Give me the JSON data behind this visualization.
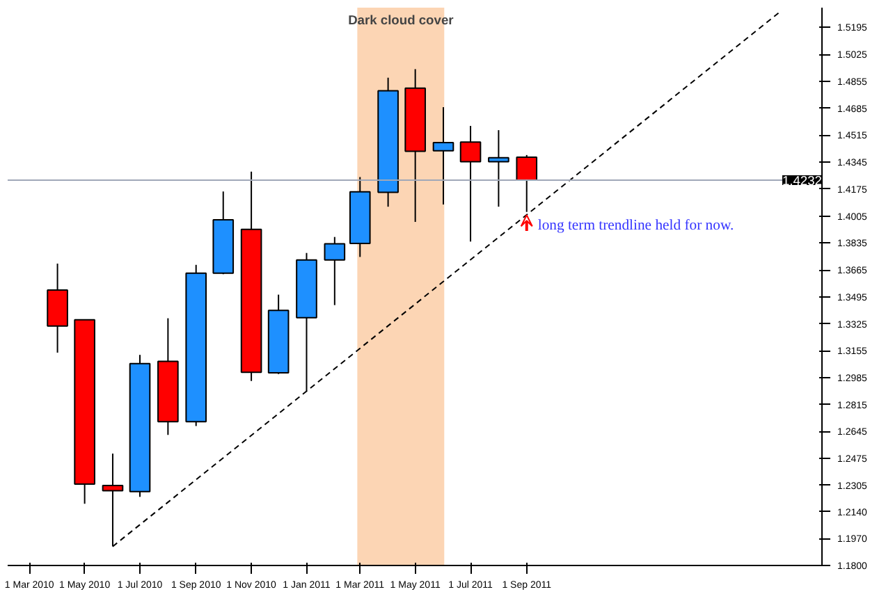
{
  "chart_data": {
    "type": "candlestick",
    "x": [
      "2010-04",
      "2010-05",
      "2010-06",
      "2010-07",
      "2010-08",
      "2010-09",
      "2010-10",
      "2010-11",
      "2010-12",
      "2011-01",
      "2011-02",
      "2011-03",
      "2011-04",
      "2011-05",
      "2011-06",
      "2011-07",
      "2011-08",
      "2011-09"
    ],
    "ohlc": [
      [
        1.3538,
        1.3705,
        1.3143,
        1.3311
      ],
      [
        1.335,
        1.335,
        1.2189,
        1.2313
      ],
      [
        1.2305,
        1.2506,
        1.1921,
        1.2272
      ],
      [
        1.2266,
        1.3129,
        1.2233,
        1.3074
      ],
      [
        1.3088,
        1.336,
        1.2624,
        1.2707
      ],
      [
        1.2707,
        1.3697,
        1.268,
        1.3645
      ],
      [
        1.3645,
        1.416,
        1.3638,
        1.3981
      ],
      [
        1.3921,
        1.4285,
        1.2964,
        1.3019
      ],
      [
        1.3016,
        1.3509,
        1.3008,
        1.341
      ],
      [
        1.3364,
        1.3772,
        1.2901,
        1.3728
      ],
      [
        1.3728,
        1.3873,
        1.3443,
        1.383
      ],
      [
        1.3832,
        1.4251,
        1.3747,
        1.4158
      ],
      [
        1.4155,
        1.4878,
        1.4064,
        1.4795
      ],
      [
        1.4812,
        1.4932,
        1.3968,
        1.4414
      ],
      [
        1.4417,
        1.4692,
        1.4078,
        1.4469
      ],
      [
        1.4472,
        1.4574,
        1.3844,
        1.4348
      ],
      [
        1.4348,
        1.4547,
        1.4064,
        1.4373
      ],
      [
        1.4376,
        1.439,
        1.4031,
        1.4232
      ]
    ],
    "colors": [
      "#ff0000",
      "#ff0000",
      "#ff0000",
      "#1e90ff",
      "#ff0000",
      "#1e90ff",
      "#1e90ff",
      "#ff0000",
      "#1e90ff",
      "#1e90ff",
      "#1e90ff",
      "#1e90ff",
      "#1e90ff",
      "#ff0000",
      "#1e90ff",
      "#ff0000",
      "#1e90ff",
      "#ff0000"
    ],
    "series": [
      {
        "type": "line",
        "color": "#000000",
        "line_style": "dashed",
        "x": [
          "2010-06-01",
          "2012-06-08"
        ],
        "values": [
          1.192,
          1.53
        ]
      }
    ],
    "xlim": [
      "2010-02-05",
      "2012-07-23"
    ],
    "xticks": [
      {
        "value": "2010-03-01",
        "label": "1 Mar 2010"
      },
      {
        "value": "2010-05-01",
        "label": "1 May 2010"
      },
      {
        "value": "2010-07-01",
        "label": "1 Jul 2010"
      },
      {
        "value": "2010-09-01",
        "label": "1 Sep 2010"
      },
      {
        "value": "2010-11-01",
        "label": "1 Nov 2010"
      },
      {
        "value": "2011-01-01",
        "label": "1 Jan 2011"
      },
      {
        "value": "2011-03-01",
        "label": "1 Mar 2011"
      },
      {
        "value": "2011-05-01",
        "label": "1 May 2011"
      },
      {
        "value": "2011-07-01",
        "label": "1 Jul 2011"
      },
      {
        "value": "2011-09-01",
        "label": "1 Sep 2011"
      }
    ],
    "ylim": [
      1.18,
      1.532
    ],
    "yticks": [
      {
        "value": 1.5195,
        "label": "1.5195"
      },
      {
        "value": 1.5025,
        "label": "1.5025"
      },
      {
        "value": 1.4855,
        "label": "1.4855"
      },
      {
        "value": 1.4685,
        "label": "1.4685"
      },
      {
        "value": 1.4515,
        "label": "1.4515"
      },
      {
        "value": 1.4345,
        "label": "1.4345"
      },
      {
        "value": 1.4175,
        "label": "1.4175"
      },
      {
        "value": 1.4005,
        "label": "1.4005"
      },
      {
        "value": 1.3835,
        "label": "1.3835"
      },
      {
        "value": 1.3665,
        "label": "1.3665"
      },
      {
        "value": 1.3495,
        "label": "1.3495"
      },
      {
        "value": 1.3325,
        "label": "1.3325"
      },
      {
        "value": 1.3155,
        "label": "1.3155"
      },
      {
        "value": 1.2985,
        "label": "1.2985"
      },
      {
        "value": 1.2815,
        "label": "1.2815"
      },
      {
        "value": 1.2645,
        "label": "1.2645"
      },
      {
        "value": 1.2475,
        "label": "1.2475"
      },
      {
        "value": 1.2305,
        "label": "1.2305"
      },
      {
        "value": 1.214,
        "label": "1.2140"
      },
      {
        "value": 1.197,
        "label": "1.1970"
      },
      {
        "value": 1.18,
        "label": "1.1800"
      }
    ],
    "ref_lines": [
      {
        "axis": "y",
        "value": 1.4232,
        "label": "1.4232",
        "color": "#a0a8b8"
      }
    ],
    "bands": [
      {
        "axis": "x",
        "from": "2011-02-26",
        "to": "2011-06-02",
        "label": "Dark cloud cover",
        "color": "#fcd5b4"
      }
    ],
    "annotations": [
      {
        "text": "long term trendline held for now.",
        "x": "2011-09",
        "y": 1.4031
      }
    ],
    "grid": false
  }
}
